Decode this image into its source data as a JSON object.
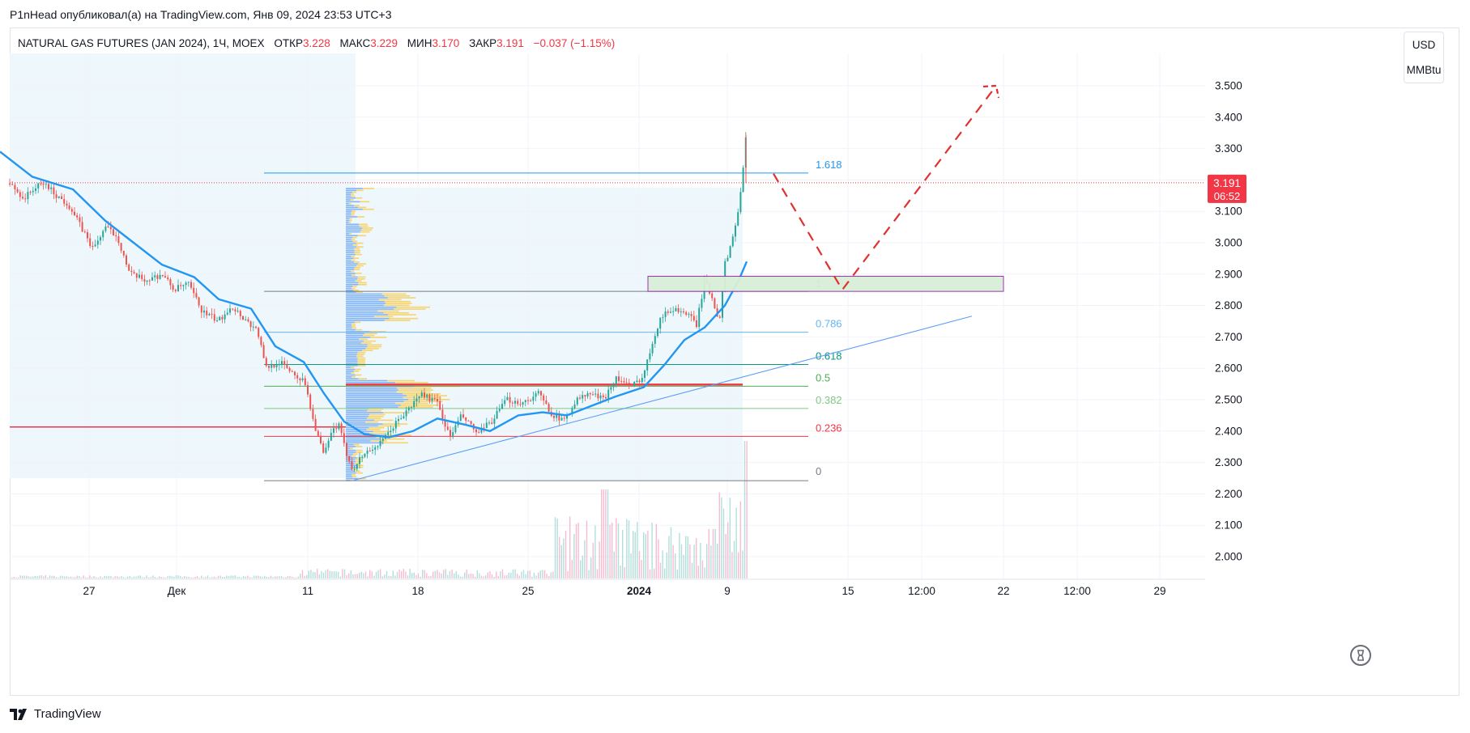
{
  "header": {
    "publish_caption": "P1nHead опубликовал(а) на TradingView.com, Янв 09, 2024 23:53 UTC+3"
  },
  "legend": {
    "symbol": "NATURAL GAS FUTURES (JAN 2024), 1Ч, MOEX",
    "open_label": "ОТКР",
    "open_value": "3.228",
    "high_label": "МАКС",
    "high_value": "3.229",
    "low_label": "МИН",
    "low_value": "3.170",
    "close_label": "ЗАКР",
    "close_value": "3.191",
    "change": "−0.037 (−1.15%)"
  },
  "price_scale": {
    "currency": "USD",
    "unit": "MMBtu",
    "last_price": "3.191",
    "countdown": "06:52"
  },
  "footer": {
    "brand": "TradingView"
  },
  "colors": {
    "up": "#26a69a",
    "down": "#ef5350",
    "ma": "#2196f3",
    "accent_red": "#f23645",
    "fib_1618": "#2196f3",
    "fib_1": "#787b86",
    "fib_0786": "#64b5f6",
    "fib_0618": "#089981",
    "fib_05": "#4caf50",
    "fib_0382": "#81c784",
    "fib_0236": "#f23645",
    "fib_0": "#787b86",
    "zone_fill": "#d8efd8",
    "zone_border": "#9c27b0"
  },
  "chart_data": {
    "type": "candlestick",
    "title": "",
    "ylim": [
      1.92,
      3.62
    ],
    "y_ticks": [
      "3.500",
      "3.400",
      "3.300",
      "3.200",
      "3.100",
      "3.000",
      "2.900",
      "2.800",
      "2.700",
      "2.600",
      "2.500",
      "2.400",
      "2.300",
      "2.200",
      "2.100",
      "2.000"
    ],
    "x_ticks": [
      "27",
      "Дек",
      "11",
      "18",
      "25",
      "2024",
      "9",
      "15",
      "12:00",
      "22",
      "12:00",
      "29"
    ],
    "price_path": [
      [
        0,
        3.22
      ],
      [
        30,
        3.14
      ],
      [
        40,
        3.17
      ],
      [
        55,
        3.19
      ],
      [
        70,
        3.15
      ],
      [
        85,
        3.12
      ],
      [
        100,
        3.05
      ],
      [
        115,
        2.98
      ],
      [
        130,
        3.05
      ],
      [
        145,
        3.02
      ],
      [
        160,
        2.9
      ],
      [
        180,
        2.88
      ],
      [
        200,
        2.9
      ],
      [
        215,
        2.85
      ],
      [
        232,
        2.87
      ],
      [
        250,
        2.78
      ],
      [
        270,
        2.75
      ],
      [
        285,
        2.8
      ],
      [
        305,
        2.75
      ],
      [
        318,
        2.72
      ],
      [
        328,
        2.6
      ],
      [
        345,
        2.62
      ],
      [
        365,
        2.58
      ],
      [
        378,
        2.55
      ],
      [
        385,
        2.45
      ],
      [
        400,
        2.32
      ],
      [
        410,
        2.4
      ],
      [
        418,
        2.42
      ],
      [
        425,
        2.35
      ],
      [
        435,
        2.28
      ],
      [
        450,
        2.33
      ],
      [
        470,
        2.36
      ],
      [
        490,
        2.43
      ],
      [
        505,
        2.47
      ],
      [
        520,
        2.52
      ],
      [
        540,
        2.49
      ],
      [
        555,
        2.38
      ],
      [
        570,
        2.45
      ],
      [
        590,
        2.39
      ],
      [
        610,
        2.44
      ],
      [
        625,
        2.5
      ],
      [
        645,
        2.49
      ],
      [
        665,
        2.52
      ],
      [
        680,
        2.46
      ],
      [
        695,
        2.43
      ],
      [
        712,
        2.5
      ],
      [
        730,
        2.52
      ],
      [
        745,
        2.5
      ],
      [
        760,
        2.57
      ],
      [
        780,
        2.54
      ],
      [
        795,
        2.58
      ],
      [
        805,
        2.68
      ],
      [
        815,
        2.76
      ],
      [
        830,
        2.79
      ],
      [
        845,
        2.78
      ],
      [
        860,
        2.74
      ],
      [
        870,
        2.88
      ],
      [
        880,
        2.82
      ],
      [
        888,
        2.75
      ],
      [
        895,
        2.93
      ],
      [
        905,
        3.02
      ],
      [
        912,
        3.11
      ],
      [
        918,
        3.24
      ],
      [
        921,
        3.34
      ],
      [
        924,
        3.19
      ]
    ],
    "moving_average": [
      [
        0,
        3.29
      ],
      [
        40,
        3.21
      ],
      [
        90,
        3.17
      ],
      [
        130,
        3.07
      ],
      [
        160,
        3.01
      ],
      [
        200,
        2.93
      ],
      [
        240,
        2.89
      ],
      [
        270,
        2.82
      ],
      [
        310,
        2.79
      ],
      [
        340,
        2.67
      ],
      [
        375,
        2.62
      ],
      [
        400,
        2.52
      ],
      [
        425,
        2.43
      ],
      [
        450,
        2.39
      ],
      [
        480,
        2.38
      ],
      [
        510,
        2.4
      ],
      [
        540,
        2.44
      ],
      [
        575,
        2.42
      ],
      [
        605,
        2.4
      ],
      [
        640,
        2.45
      ],
      [
        670,
        2.46
      ],
      [
        700,
        2.45
      ],
      [
        730,
        2.48
      ],
      [
        760,
        2.51
      ],
      [
        795,
        2.54
      ],
      [
        820,
        2.61
      ],
      [
        845,
        2.69
      ],
      [
        870,
        2.73
      ],
      [
        895,
        2.8
      ],
      [
        912,
        2.88
      ],
      [
        922,
        2.94
      ]
    ],
    "fibonacci": [
      {
        "level": "1.618",
        "price": 3.222,
        "color": "#2196f3"
      },
      {
        "level": "1",
        "price": 2.845,
        "color": "#787b86"
      },
      {
        "level": "0.786",
        "price": 2.715,
        "color": "#64b5f6"
      },
      {
        "level": "0.618",
        "price": 2.612,
        "color": "#089981"
      },
      {
        "level": "0.5",
        "price": 2.543,
        "color": "#4caf50"
      },
      {
        "level": "0.382",
        "price": 2.472,
        "color": "#81c784"
      },
      {
        "level": "0.236",
        "price": 2.383,
        "color": "#f23645"
      },
      {
        "level": "0",
        "price": 2.242,
        "color": "#787b86"
      }
    ],
    "horizontal_lines": [
      {
        "price": 2.413,
        "color": "#f23645"
      },
      {
        "price": 2.548,
        "color": "#f23645"
      }
    ],
    "current_price_line": 3.191,
    "zone": {
      "price_top": 2.893,
      "price_bottom": 2.845
    },
    "trendline": {
      "x1": 435,
      "p1": 2.242,
      "x2": 1200,
      "p2": 2.766
    },
    "projection_path": [
      [
        955,
        3.22
      ],
      [
        1040,
        2.85
      ],
      [
        1230,
        3.5
      ]
    ],
    "volume_profile_range": [
      2.242,
      3.175
    ]
  }
}
